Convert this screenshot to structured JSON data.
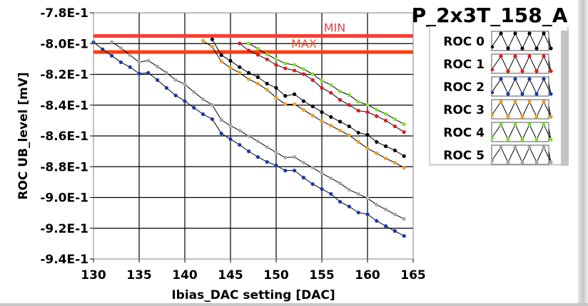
{
  "chart_data": {
    "type": "line",
    "title": "P_2x3T_158_A",
    "xlabel": "Ibias_DAC setting [DAC]",
    "ylabel": "ROC UB_level [mV]",
    "xlim": [
      130,
      165
    ],
    "ylim": [
      -0.94,
      -0.78
    ],
    "x_ticks": [
      130,
      135,
      140,
      145,
      150,
      155,
      160,
      165
    ],
    "x_tick_labels": [
      "130",
      "135",
      "140",
      "145",
      "150",
      "155",
      "160",
      "165"
    ],
    "y_ticks": [
      -0.78,
      -0.8,
      -0.82,
      -0.84,
      -0.86,
      -0.88,
      -0.9,
      -0.92,
      -0.94
    ],
    "y_tick_labels": [
      "-7.8E-1",
      "-8.0E-1",
      "-8.2E-1",
      "-8.4E-1",
      "-8.6E-1",
      "-8.8E-1",
      "-9.0E-1",
      "-9.2E-1",
      "-9.4E-1"
    ],
    "grid": true,
    "legend_position": "right",
    "reference_lines": [
      {
        "label": "MIN",
        "y": -0.795,
        "color": "#ff3b30",
        "label_color": "#e8404a"
      },
      {
        "label": "MAX",
        "y": -0.8055,
        "color": "#ff3b0a",
        "label_color": "#f0502a"
      }
    ],
    "series": [
      {
        "name": "ROC 0",
        "color": "#000000",
        "x": [
          143,
          144,
          145,
          146,
          147,
          148,
          149,
          150,
          151,
          152,
          153,
          154,
          155,
          156,
          157,
          158,
          159,
          160,
          161,
          162,
          163,
          164
        ],
        "y": [
          -0.7973,
          -0.8075,
          -0.8112,
          -0.8153,
          -0.819,
          -0.8218,
          -0.826,
          -0.8288,
          -0.834,
          -0.8329,
          -0.8374,
          -0.8408,
          -0.8445,
          -0.8477,
          -0.8507,
          -0.8538,
          -0.8579,
          -0.8593,
          -0.8639,
          -0.8667,
          -0.8694,
          -0.8731
        ]
      },
      {
        "name": "ROC 1",
        "color": "#e8141c",
        "x": [
          146,
          147,
          148,
          149,
          150,
          151,
          152,
          153,
          154,
          155,
          156,
          157,
          158,
          159,
          160,
          161,
          162,
          163,
          164
        ],
        "y": [
          -0.7999,
          -0.8045,
          -0.8073,
          -0.8102,
          -0.8139,
          -0.8161,
          -0.8175,
          -0.8198,
          -0.8237,
          -0.8288,
          -0.832,
          -0.8366,
          -0.8399,
          -0.8436,
          -0.8445,
          -0.8471,
          -0.85,
          -0.8538,
          -0.8575
        ]
      },
      {
        "name": "ROC 2",
        "color": "#1438b4",
        "x": [
          130,
          131,
          132,
          133,
          134,
          135,
          136,
          137,
          138,
          139,
          140,
          141,
          142,
          143,
          144,
          145,
          146,
          147,
          148,
          149,
          150,
          151,
          152,
          153,
          154,
          155,
          156,
          157,
          158,
          159,
          160,
          161,
          162,
          163,
          164
        ],
        "y": [
          -0.7991,
          -0.8037,
          -0.8079,
          -0.8121,
          -0.8153,
          -0.8195,
          -0.819,
          -0.8237,
          -0.8288,
          -0.8337,
          -0.8374,
          -0.8417,
          -0.8459,
          -0.8491,
          -0.8584,
          -0.8621,
          -0.8658,
          -0.87,
          -0.8737,
          -0.8769,
          -0.8792,
          -0.8825,
          -0.8825,
          -0.8871,
          -0.8913,
          -0.8945,
          -0.8977,
          -0.9028,
          -0.9059,
          -0.9098,
          -0.9109,
          -0.9152,
          -0.9186,
          -0.9218,
          -0.925
        ]
      },
      {
        "name": "ROC 3",
        "color": "#f0a020",
        "x": [
          142,
          143,
          144,
          145,
          146,
          147,
          148,
          149,
          150,
          151,
          152,
          153,
          154,
          155,
          156,
          157,
          158,
          159,
          160,
          161,
          162,
          163,
          164
        ],
        "y": [
          -0.7982,
          -0.8021,
          -0.8116,
          -0.8158,
          -0.819,
          -0.8232,
          -0.826,
          -0.83,
          -0.8352,
          -0.8394,
          -0.8394,
          -0.8431,
          -0.8468,
          -0.8504,
          -0.8533,
          -0.8565,
          -0.8596,
          -0.8639,
          -0.8681,
          -0.8713,
          -0.8746,
          -0.8774,
          -0.8806
        ]
      },
      {
        "name": "ROC 4",
        "color": "#78e628",
        "x": [
          147,
          148,
          149,
          150,
          151,
          152,
          153,
          154,
          155,
          156,
          157,
          158,
          159,
          160,
          161,
          162,
          163,
          164
        ],
        "y": [
          -0.7999,
          -0.8033,
          -0.807,
          -0.8102,
          -0.8129,
          -0.8138,
          -0.8166,
          -0.8198,
          -0.8241,
          -0.8269,
          -0.8311,
          -0.8334,
          -0.8379,
          -0.8397,
          -0.843,
          -0.8457,
          -0.8491,
          -0.8524
        ]
      },
      {
        "name": "ROC 5",
        "color": "#a8a8a8",
        "x": [
          132,
          133,
          134,
          135,
          136,
          137,
          138,
          139,
          140,
          141,
          142,
          143,
          144,
          145,
          146,
          147,
          148,
          149,
          150,
          151,
          152,
          153,
          154,
          155,
          156,
          157,
          158,
          159,
          160,
          161,
          162,
          163,
          164
        ],
        "y": [
          -0.799,
          -0.8028,
          -0.8075,
          -0.8121,
          -0.811,
          -0.8149,
          -0.819,
          -0.8237,
          -0.8264,
          -0.8315,
          -0.8362,
          -0.8399,
          -0.8496,
          -0.8533,
          -0.8565,
          -0.8601,
          -0.8635,
          -0.8672,
          -0.8708,
          -0.8741,
          -0.8737,
          -0.8774,
          -0.8806,
          -0.8843,
          -0.8875,
          -0.8908,
          -0.895,
          -0.8977,
          -0.9005,
          -0.9047,
          -0.9078,
          -0.911,
          -0.9139
        ]
      }
    ]
  }
}
